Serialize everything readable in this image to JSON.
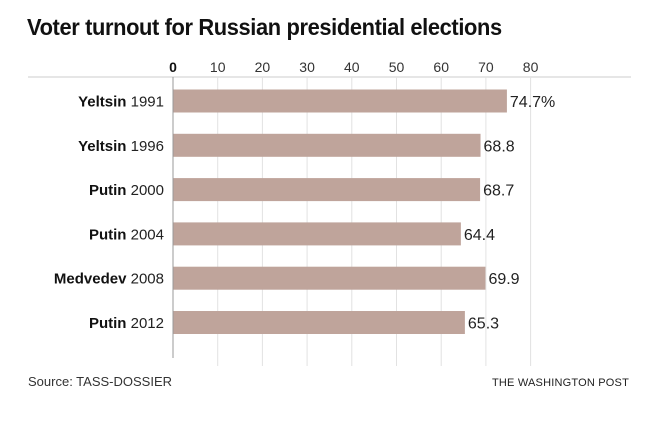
{
  "chart_data": {
    "type": "bar",
    "orientation": "horizontal",
    "title": "Voter turnout for Russian presidential elections",
    "categories": [
      {
        "name": "Yeltsin",
        "year": "1991"
      },
      {
        "name": "Yeltsin",
        "year": "1996"
      },
      {
        "name": "Putin",
        "year": "2000"
      },
      {
        "name": "Putin",
        "year": "2004"
      },
      {
        "name": "Medvedev",
        "year": "2008"
      },
      {
        "name": "Putin",
        "year": "2012"
      }
    ],
    "values": [
      74.7,
      68.8,
      68.7,
      64.4,
      69.9,
      65.3
    ],
    "value_labels": [
      "74.7%",
      "68.8",
      "68.7",
      "64.4",
      "69.9",
      "65.3"
    ],
    "xlim": [
      0,
      80
    ],
    "xticks": [
      "0",
      "10",
      "20",
      "30",
      "40",
      "50",
      "60",
      "70",
      "80"
    ],
    "xlabel": "",
    "ylabel": "",
    "grid": true,
    "bar_color": "#bfa49b",
    "axis_position": "top"
  },
  "footer": {
    "source": "Source: TASS-DOSSIER",
    "credit": "THE WASHINGTON POST"
  }
}
